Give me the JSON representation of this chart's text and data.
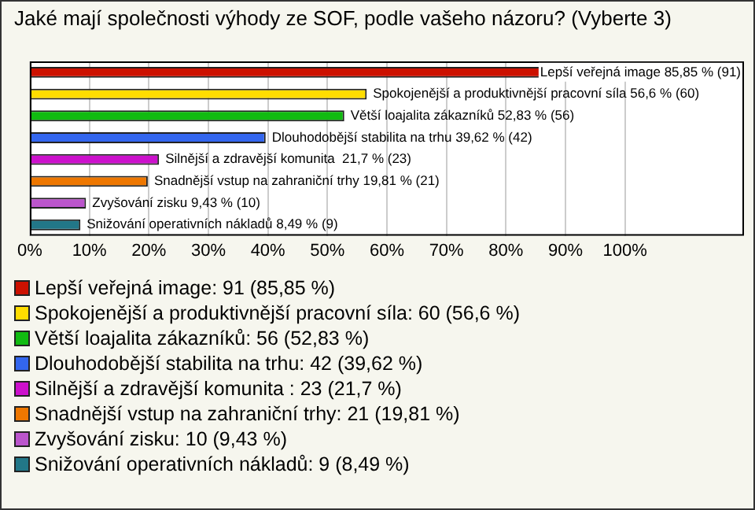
{
  "chart_data": {
    "type": "bar",
    "orientation": "horizontal",
    "stacked": true,
    "title": "Jaké mají společnosti výhody ze SOF, podle vašeho názoru? (Vyberte 3)",
    "categories": [
      null,
      null,
      null,
      null,
      null,
      null,
      null,
      null
    ],
    "series": [
      {
        "name": "Lepší veřejná image: 91 (85,85 %)",
        "color": "#cc1100",
        "values": [
          85.85,
          null,
          null,
          null,
          null,
          null,
          null,
          null
        ],
        "value_labels": [
          "Lepší veřejná image 85,85 % (91)",
          null,
          null,
          null,
          null,
          null,
          null,
          null
        ]
      },
      {
        "name": "Spokojenější a produktivnější pracovní síla: 60 (56,6 %)",
        "color": "#ffdd00",
        "values": [
          null,
          56.6,
          null,
          null,
          null,
          null,
          null,
          null
        ],
        "value_labels": [
          null,
          "Spokojenější a produktivnější pracovní síla 56,6 % (60)",
          null,
          null,
          null,
          null,
          null,
          null
        ]
      },
      {
        "name": "Větší loajalita zákazníků: 56 (52,83 %)",
        "color": "#11bb11",
        "values": [
          null,
          null,
          52.83,
          null,
          null,
          null,
          null,
          null
        ],
        "value_labels": [
          null,
          null,
          "Větší loajalita zákazníků 52,83 % (56)",
          null,
          null,
          null,
          null,
          null
        ]
      },
      {
        "name": "Dlouhodobější stabilita na trhu: 42 (39,62 %)",
        "color": "#3366ee",
        "values": [
          null,
          null,
          null,
          39.62,
          null,
          null,
          null,
          null
        ],
        "value_labels": [
          null,
          null,
          null,
          "Dlouhodobější stabilita na trhu 39,62 % (42)",
          null,
          null,
          null,
          null
        ]
      },
      {
        "name": "Silnější a zdravější komunita : 23 (21,7 %)",
        "color": "#cc11cc",
        "values": [
          null,
          null,
          null,
          null,
          21.7,
          null,
          null,
          null
        ],
        "value_labels": [
          null,
          null,
          null,
          null,
          "Silnější a zdravější komunita  21,7 % (23)",
          null,
          null,
          null
        ]
      },
      {
        "name": "Snadnější vstup na zahraniční trhy: 21 (19,81 %)",
        "color": "#ee7700",
        "values": [
          null,
          null,
          null,
          null,
          null,
          19.81,
          null,
          null
        ],
        "value_labels": [
          null,
          null,
          null,
          null,
          null,
          "Snadnější vstup na zahraniční trhy 19,81 % (21)",
          null,
          null
        ]
      },
      {
        "name": "Zvyšování zisku: 10 (9,43 %)",
        "color": "#bb55cc",
        "values": [
          null,
          null,
          null,
          null,
          null,
          null,
          9.43,
          null
        ],
        "value_labels": [
          null,
          null,
          null,
          null,
          null,
          null,
          "Zvyšování zisku 9,43 % (10)",
          null
        ]
      },
      {
        "name": "Snižování operativních nákladů: 9 (8,49 %)",
        "color": "#227788",
        "values": [
          null,
          null,
          null,
          null,
          null,
          null,
          null,
          8.49
        ],
        "value_labels": [
          null,
          null,
          null,
          null,
          null,
          null,
          null,
          "Snižování operativních nákladů 8,49 % (9)"
        ]
      }
    ],
    "xlim": [
      0,
      120
    ],
    "xticks": [
      {
        "value": 0,
        "label": "0%"
      },
      {
        "value": 10,
        "label": "10%"
      },
      {
        "value": 20,
        "label": "20%"
      },
      {
        "value": 30,
        "label": "30%"
      },
      {
        "value": 40,
        "label": "40%"
      },
      {
        "value": 50,
        "label": "50%"
      },
      {
        "value": 60,
        "label": "60%"
      },
      {
        "value": 70,
        "label": "70%"
      },
      {
        "value": 80,
        "label": "80%"
      },
      {
        "value": 90,
        "label": "90%"
      },
      {
        "value": 100,
        "label": "100%"
      }
    ],
    "grid": "x",
    "tick_labels": "x",
    "legend": "bottom"
  }
}
